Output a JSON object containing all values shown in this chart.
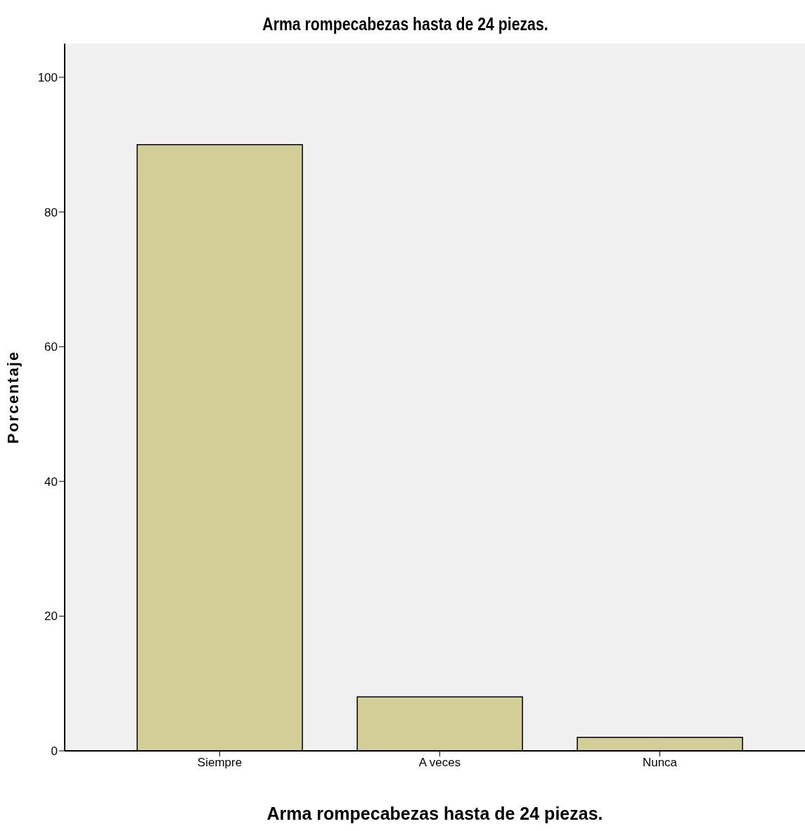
{
  "chart_data": {
    "type": "bar",
    "title": "Arma rompecabezas hasta de 24 piezas.",
    "xlabel": "Arma rompecabezas hasta de 24 piezas.",
    "ylabel": "Porcentaje",
    "categories": [
      "Siempre",
      "A veces",
      "Nunca"
    ],
    "values": [
      90,
      8,
      2
    ],
    "color": "#d3ce97",
    "ylim": [
      0,
      105
    ],
    "yticks": [
      0,
      20,
      40,
      60,
      80,
      100
    ],
    "grid": false
  }
}
